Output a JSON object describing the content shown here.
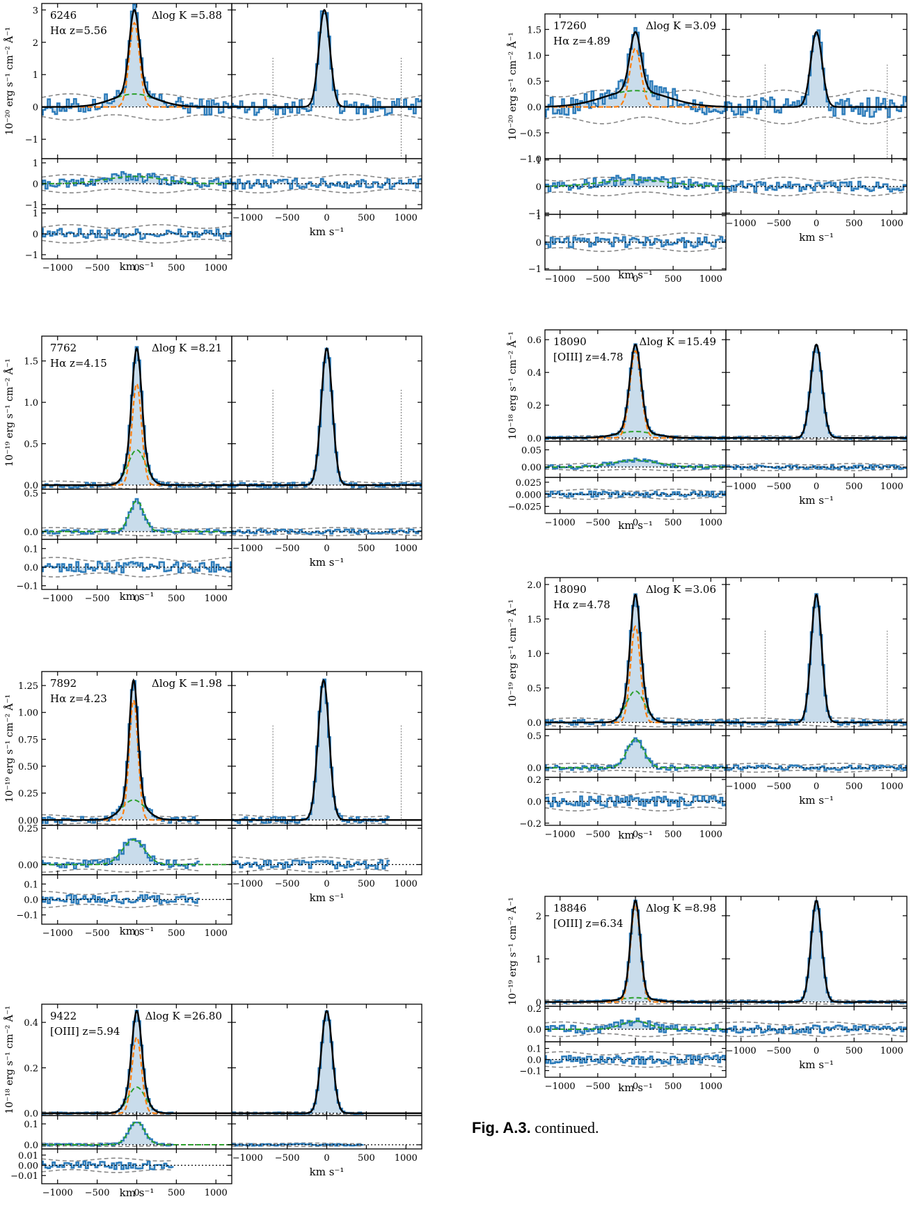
{
  "caption": {
    "label": "Fig. A.3.",
    "text": "continued."
  },
  "colors": {
    "data": "#2b7bba",
    "fill": "#c9dceb",
    "model": "#000000",
    "narrow": "#ff7f0e",
    "broad": "#2ca02c",
    "noise": "#888888"
  },
  "x_axis": {
    "ticks": [
      -1000,
      -500,
      0,
      500,
      1000
    ],
    "xlim": [
      -1200,
      1200
    ]
  },
  "chart_data": [
    {
      "type": "line",
      "id": "6246",
      "line": "Hα",
      "z": "5.56",
      "dlogk": "5.88",
      "label_id": "6246",
      "label_line": "Hα z=5.56",
      "label_dlogk": "Δlog K =5.88",
      "ylabel": "10⁻²⁰ erg s⁻¹ cm⁻² Å⁻¹",
      "xlabel": "km s⁻¹",
      "main": {
        "ylim": [
          -1.6,
          3.2
        ],
        "ticks": [
          -1,
          0,
          1,
          2,
          3
        ],
        "peak": 3.0,
        "narrow_amp": 2.6,
        "narrow_sigma": 65,
        "broad_amp": 0.4,
        "broad_sigma": 280,
        "noise": 0.25,
        "center": -30
      },
      "resid1": {
        "ylim": [
          -1.2,
          1.2
        ],
        "ticks": [
          -1,
          0,
          1
        ],
        "amp": 0.35,
        "sigma": 350,
        "noise": 0.25
      },
      "resid2": {
        "ylim": [
          -1.2,
          1.2
        ],
        "ticks": [
          -1,
          0,
          1
        ],
        "noise": 0.25
      },
      "broad_wide": true
    },
    {
      "type": "line",
      "id": "7762",
      "line": "Hα",
      "z": "4.15",
      "dlogk": "8.21",
      "label_id": "7762",
      "label_line": "Hα z=4.15",
      "label_dlogk": "Δlog K =8.21",
      "ylabel": "10⁻¹⁹ erg s⁻¹ cm⁻² Å⁻¹",
      "xlabel": "km s⁻¹",
      "main": {
        "ylim": [
          -0.05,
          1.8
        ],
        "ticks": [
          0.0,
          0.5,
          1.0,
          1.5
        ],
        "peak": 1.65,
        "narrow_amp": 1.3,
        "narrow_sigma": 60,
        "broad_amp": 0.45,
        "broad_sigma": 110,
        "noise": 0.03,
        "center": 0
      },
      "resid1": {
        "ylim": [
          -0.1,
          0.55
        ],
        "ticks": [
          0.0,
          0.5
        ],
        "amp": 0.4,
        "sigma": 90,
        "noise": 0.03
      },
      "resid2": {
        "ylim": [
          -0.12,
          0.15
        ],
        "ticks": [
          -0.1,
          0.0,
          0.1
        ],
        "noise": 0.03
      }
    },
    {
      "type": "line",
      "id": "7892",
      "line": "Hα",
      "z": "4.23",
      "dlogk": "1.98",
      "label_id": "7892",
      "label_line": "Hα z=4.23",
      "label_dlogk": "Δlog K =1.98",
      "ylabel": "10⁻¹⁹ erg s⁻¹ cm⁻² Å⁻¹",
      "xlabel": "km s⁻¹",
      "main": {
        "ylim": [
          -0.05,
          1.38
        ],
        "ticks": [
          0.0,
          0.25,
          0.5,
          0.75,
          1.0,
          1.25
        ],
        "peak": 1.3,
        "narrow_amp": 1.08,
        "narrow_sigma": 55,
        "broad_amp": 0.18,
        "broad_sigma": 150,
        "noise": 0.03,
        "center": -40
      },
      "resid1": {
        "ylim": [
          -0.07,
          0.27
        ],
        "ticks": [
          0.0,
          0.25
        ],
        "amp": 0.17,
        "sigma": 140,
        "noise": 0.03
      },
      "resid2": {
        "ylim": [
          -0.16,
          0.16
        ],
        "ticks": [
          -0.1,
          0.0,
          0.1
        ],
        "noise": 0.03
      },
      "data_end": 780
    },
    {
      "type": "line",
      "id": "9422",
      "line": "[OIII]",
      "z": "5.94",
      "dlogk": "26.80",
      "label_id": "9422",
      "label_line": "[OIII] z=5.94",
      "label_dlogk": "Δlog K =26.80",
      "ylabel": "10⁻¹⁸ erg s⁻¹ cm⁻² Å⁻¹",
      "xlabel": "km s⁻¹",
      "main": {
        "ylim": [
          -0.01,
          0.48
        ],
        "ticks": [
          0.0,
          0.2,
          0.4
        ],
        "peak": 0.45,
        "narrow_amp": 0.35,
        "narrow_sigma": 60,
        "broad_amp": 0.12,
        "broad_sigma": 110,
        "noise": 0.004,
        "center": 0
      },
      "resid1": {
        "ylim": [
          -0.02,
          0.14
        ],
        "ticks": [
          0.0,
          0.1
        ],
        "amp": 0.11,
        "sigma": 100,
        "noise": 0.005
      },
      "resid2": {
        "ylim": [
          -0.018,
          0.016
        ],
        "ticks": [
          -0.01,
          0.0,
          0.01
        ],
        "noise": 0.004
      },
      "data_end": 450
    },
    {
      "type": "line",
      "id": "17260",
      "line": "Hα",
      "z": "4.89",
      "dlogk": "3.09",
      "label_id": "17260",
      "label_line": "Hα z=4.89",
      "label_dlogk": "Δlog K =3.09",
      "ylabel": "10⁻²⁰ erg s⁻¹ cm⁻² Å⁻¹",
      "xlabel": "km s⁻¹",
      "main": {
        "ylim": [
          -1.0,
          1.8
        ],
        "ticks": [
          -1.0,
          -0.5,
          0.0,
          0.5,
          1.0,
          1.5
        ],
        "peak": 1.45,
        "narrow_amp": 1.15,
        "narrow_sigma": 75,
        "broad_amp": 0.32,
        "broad_sigma": 420,
        "noise": 0.2,
        "center": 0
      },
      "resid1": {
        "ylim": [
          -1.05,
          1.05
        ],
        "ticks": [
          -1,
          0,
          1
        ],
        "amp": 0.25,
        "sigma": 450,
        "noise": 0.2
      },
      "resid2": {
        "ylim": [
          -1.05,
          1.05
        ],
        "ticks": [
          -1,
          0,
          1
        ],
        "noise": 0.2
      }
    },
    {
      "type": "line",
      "id": "18090",
      "line": "[OIII]",
      "z": "4.78",
      "dlogk": "15.49",
      "label_id": "18090",
      "label_line": "[OIII] z=4.78",
      "label_dlogk": "Δlog K =15.49",
      "ylabel": "10⁻¹⁸ erg s⁻¹ cm⁻² Å⁻¹",
      "xlabel": "km s⁻¹",
      "main": {
        "ylim": [
          -0.02,
          0.66
        ],
        "ticks": [
          0.0,
          0.2,
          0.4,
          0.6
        ],
        "peak": 0.57,
        "narrow_amp": 0.54,
        "narrow_sigma": 75,
        "broad_amp": 0.04,
        "broad_sigma": 250,
        "noise": 0.008,
        "center": 0
      },
      "resid1": {
        "ylim": [
          -0.03,
          0.075
        ],
        "ticks": [
          0.0,
          0.05
        ],
        "amp": 0.02,
        "sigma": 300,
        "noise": 0.006
      },
      "resid2": {
        "ylim": [
          -0.04,
          0.035
        ],
        "ticks": [
          -0.025,
          0.0,
          0.025
        ],
        "noise": 0.006
      }
    },
    {
      "type": "line",
      "id": "18090",
      "line": "Hα",
      "z": "4.78",
      "dlogk": "3.06",
      "label_id": "18090",
      "label_line": "Hα z=4.78",
      "label_dlogk": "Δlog K =3.06",
      "ylabel": "10⁻¹⁹ erg s⁻¹ cm⁻² Å⁻¹",
      "xlabel": "km s⁻¹",
      "main": {
        "ylim": [
          -0.1,
          2.1
        ],
        "ticks": [
          0.0,
          0.5,
          1.0,
          1.5,
          2.0
        ],
        "peak": 1.85,
        "narrow_amp": 1.38,
        "narrow_sigma": 65,
        "broad_amp": 0.45,
        "broad_sigma": 120,
        "noise": 0.04,
        "center": 0
      },
      "resid1": {
        "ylim": [
          -0.15,
          0.6
        ],
        "ticks": [
          0.0,
          0.5
        ],
        "amp": 0.45,
        "sigma": 110,
        "noise": 0.04
      },
      "resid2": {
        "ylim": [
          -0.22,
          0.22
        ],
        "ticks": [
          -0.2,
          0.0,
          0.2
        ],
        "noise": 0.05
      }
    },
    {
      "type": "line",
      "id": "18846",
      "line": "[OIII]",
      "z": "6.34",
      "dlogk": "8.98",
      "label_id": "18846",
      "label_line": "[OIII] z=6.34",
      "label_dlogk": "Δlog K =8.98",
      "ylabel": "10⁻¹⁹ erg s⁻¹ cm⁻² Å⁻¹",
      "xlabel": "km s⁻¹",
      "main": {
        "ylim": [
          -0.1,
          2.45
        ],
        "ticks": [
          0,
          1,
          2
        ],
        "peak": 2.35,
        "narrow_amp": 2.3,
        "narrow_sigma": 65,
        "broad_amp": 0.1,
        "broad_sigma": 220,
        "noise": 0.03,
        "center": 0
      },
      "resid1": {
        "ylim": [
          -0.12,
          0.22
        ],
        "ticks": [
          0.0,
          0.2
        ],
        "amp": 0.08,
        "sigma": 180,
        "noise": 0.04
      },
      "resid2": {
        "ylim": [
          -0.16,
          0.16
        ],
        "ticks": [
          -0.1,
          0.0,
          0.1
        ],
        "noise": 0.04
      }
    }
  ]
}
